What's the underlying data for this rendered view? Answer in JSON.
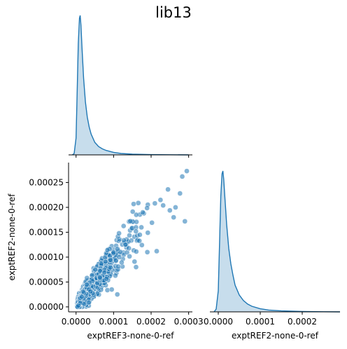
{
  "figure": {
    "title": "lib13",
    "color": "#1f77b4"
  },
  "chart_data": [
    {
      "type": "area",
      "panel": "diagonal-1",
      "title": "",
      "variable": "exptREF3-none-0-ref",
      "xlim": [
        -2e-05,
        0.00031
      ],
      "x_ticks": [
        0.0,
        0.0001,
        0.0002,
        0.0003
      ],
      "density_x": [
        -1e-05,
        -5e-06,
        0.0,
        3e-06,
        6e-06,
        9e-06,
        1.1e-05,
        1.3e-05,
        1.6e-05,
        2e-05,
        2.5e-05,
        3e-05,
        3.5e-05,
        4e-05,
        5e-05,
        6e-05,
        7e-05,
        8e-05,
        0.0001,
        0.00012,
        0.00015,
        0.0002,
        0.00025,
        0.0003
      ],
      "density_y": [
        0.0,
        0.01,
        0.12,
        0.45,
        0.8,
        0.98,
        1.0,
        0.93,
        0.76,
        0.55,
        0.38,
        0.27,
        0.2,
        0.15,
        0.09,
        0.06,
        0.043,
        0.032,
        0.018,
        0.01,
        0.005,
        0.002,
        0.001,
        0.0
      ],
      "fill": true
    },
    {
      "type": "scatter",
      "panel": "lower-left",
      "title": "",
      "xlabel": "exptREF3-none-0-ref",
      "ylabel": "exptREF2-none-0-ref",
      "xlim": [
        -2e-05,
        0.00031
      ],
      "ylim": [
        -1e-05,
        0.00029
      ],
      "x_ticks": [
        "0.0000",
        "0.0001",
        "0.0002",
        "0.0003"
      ],
      "y_ticks": [
        "0.00000",
        "0.00005",
        "0.00010",
        "0.00015",
        "0.00020",
        "0.00025"
      ],
      "x_tick_values": [
        0.0,
        0.0001,
        0.0002,
        0.0003
      ],
      "y_tick_values": [
        0.0,
        5e-05,
        0.0001,
        0.00015,
        0.0002,
        0.00025
      ],
      "point_count_estimate": 1200,
      "trend": {
        "slope": 0.97,
        "intercept": 0.0
      },
      "outliers": [
        [
          0.000295,
          0.000273
        ],
        [
          0.000283,
          0.000262
        ],
        [
          0.000277,
          0.000228
        ],
        [
          0.000245,
          0.000236
        ],
        [
          0.00029,
          0.000172
        ],
        [
          0.000265,
          0.0002
        ],
        [
          0.00025,
          0.000194
        ],
        [
          0.000232,
          0.000204
        ],
        [
          0.000225,
          0.000215
        ],
        [
          0.00021,
          0.000208
        ],
        [
          0.00026,
          0.00018
        ],
        [
          0.000215,
          0.000112
        ],
        [
          0.00017,
          0.000145
        ],
        [
          0.00019,
          0.00011
        ],
        [
          0.00016,
          8e-05
        ],
        [
          0.000115,
          0.0001
        ],
        [
          9.5e-05,
          3.5e-05
        ],
        [
          0.00011,
          2.5e-05
        ]
      ]
    },
    {
      "type": "area",
      "panel": "diagonal-2",
      "title": "",
      "xlabel": "exptREF2-none-0-ref",
      "xlim": [
        -2e-05,
        0.00029
      ],
      "x_ticks": [
        "0.0000",
        "0.0001",
        "0.0002"
      ],
      "x_tick_values": [
        0.0,
        0.0001,
        0.0002
      ],
      "density_x": [
        -1e-05,
        -5e-06,
        0.0,
        3e-06,
        6e-06,
        9e-06,
        1.1e-05,
        1.3e-05,
        1.6e-05,
        2e-05,
        2.5e-05,
        3e-05,
        3.5e-05,
        4e-05,
        5e-05,
        6e-05,
        7e-05,
        8e-05,
        0.0001,
        0.00012,
        0.00015,
        0.0002,
        0.00025,
        0.00029
      ],
      "density_y": [
        0.0,
        0.02,
        0.15,
        0.48,
        0.82,
        0.98,
        1.0,
        0.94,
        0.8,
        0.62,
        0.45,
        0.34,
        0.26,
        0.19,
        0.12,
        0.08,
        0.055,
        0.04,
        0.022,
        0.013,
        0.007,
        0.003,
        0.001,
        0.0
      ],
      "fill": true
    }
  ]
}
